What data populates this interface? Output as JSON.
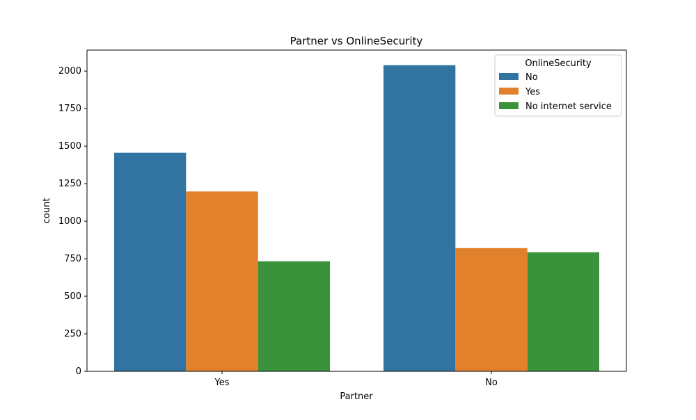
{
  "chart_data": {
    "type": "bar",
    "title": "Partner vs OnlineSecurity",
    "xlabel": "Partner",
    "ylabel": "count",
    "categories": [
      "Yes",
      "No"
    ],
    "ylim": [
      0,
      2140
    ],
    "yticks": [
      0,
      250,
      500,
      750,
      1000,
      1250,
      1500,
      1750,
      2000
    ],
    "grid": false,
    "legend": {
      "title": "OnlineSecurity",
      "placement": "top-right"
    },
    "series": [
      {
        "name": "No",
        "color": "#3274a1",
        "values": [
          1456,
          2039
        ]
      },
      {
        "name": "Yes",
        "color": "#e1812c",
        "values": [
          1198,
          821
        ]
      },
      {
        "name": "No internet service",
        "color": "#3a923a",
        "values": [
          733,
          793
        ]
      }
    ]
  }
}
